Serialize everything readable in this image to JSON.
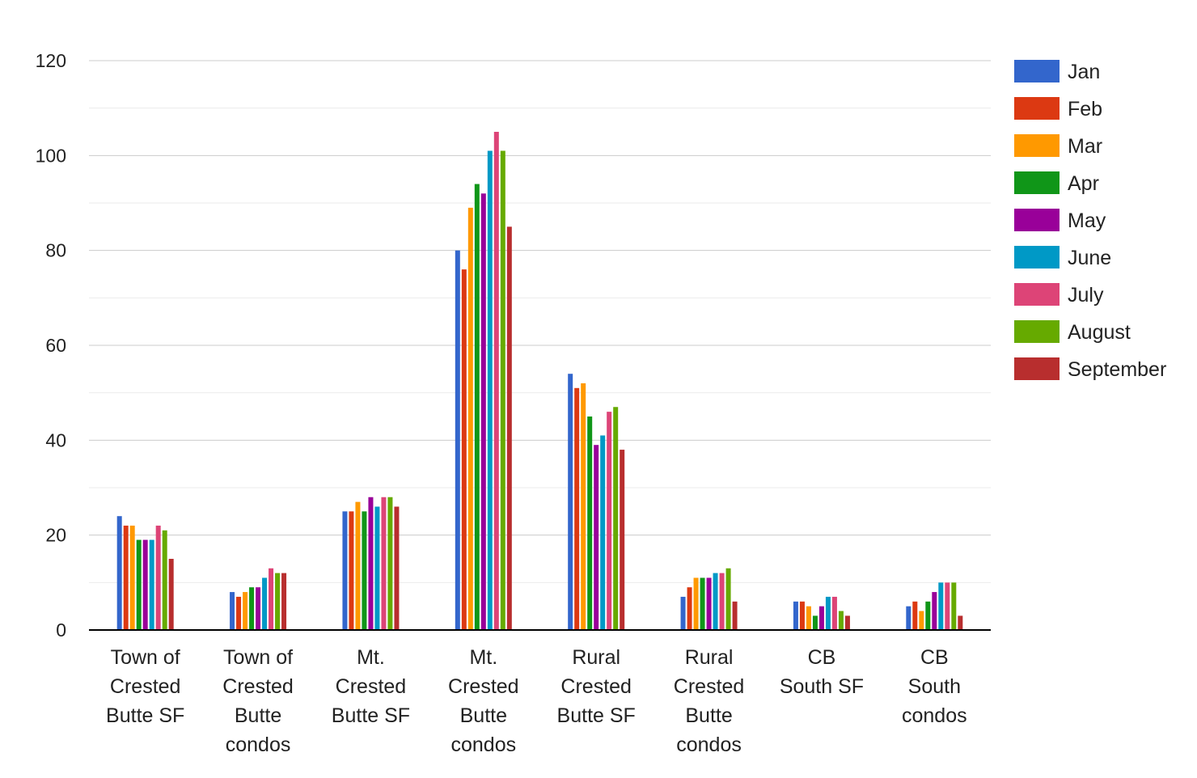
{
  "chart_data": {
    "type": "bar",
    "title": "",
    "xlabel": "",
    "ylabel": "",
    "ylim": [
      0,
      120
    ],
    "yticks": [
      0,
      20,
      40,
      60,
      80,
      100,
      120
    ],
    "grid": true,
    "legend_position": "right",
    "categories": [
      [
        "Town of",
        "Crested",
        "Butte SF"
      ],
      [
        "Town of",
        "Crested",
        "Butte",
        "condos"
      ],
      [
        "Mt.",
        "Crested",
        "Butte SF"
      ],
      [
        "Mt.",
        "Crested",
        "Butte",
        "condos"
      ],
      [
        "Rural",
        "Crested",
        "Butte SF"
      ],
      [
        "Rural",
        "Crested",
        "Butte",
        "condos"
      ],
      [
        "CB",
        "South SF"
      ],
      [
        "CB",
        "South",
        "condos"
      ]
    ],
    "series": [
      {
        "name": "Jan",
        "color": "#3366cc",
        "values": [
          24,
          8,
          25,
          80,
          54,
          7,
          6,
          5
        ]
      },
      {
        "name": "Feb",
        "color": "#dc3912",
        "values": [
          22,
          7,
          25,
          76,
          51,
          9,
          6,
          6
        ]
      },
      {
        "name": "Mar",
        "color": "#ff9900",
        "values": [
          22,
          8,
          27,
          89,
          52,
          11,
          5,
          4
        ]
      },
      {
        "name": "Apr",
        "color": "#109618",
        "values": [
          19,
          9,
          25,
          94,
          45,
          11,
          3,
          6
        ]
      },
      {
        "name": "May",
        "color": "#990099",
        "values": [
          19,
          9,
          28,
          92,
          39,
          11,
          5,
          8
        ]
      },
      {
        "name": "June",
        "color": "#0099c6",
        "values": [
          19,
          11,
          26,
          101,
          41,
          12,
          7,
          10
        ]
      },
      {
        "name": "July",
        "color": "#dd4477",
        "values": [
          22,
          13,
          28,
          105,
          46,
          12,
          7,
          10
        ]
      },
      {
        "name": "August",
        "color": "#66aa00",
        "values": [
          21,
          12,
          28,
          101,
          47,
          13,
          4,
          10
        ]
      },
      {
        "name": "September",
        "color": "#b82e2e",
        "values": [
          15,
          12,
          26,
          85,
          38,
          6,
          3,
          3
        ]
      }
    ]
  }
}
